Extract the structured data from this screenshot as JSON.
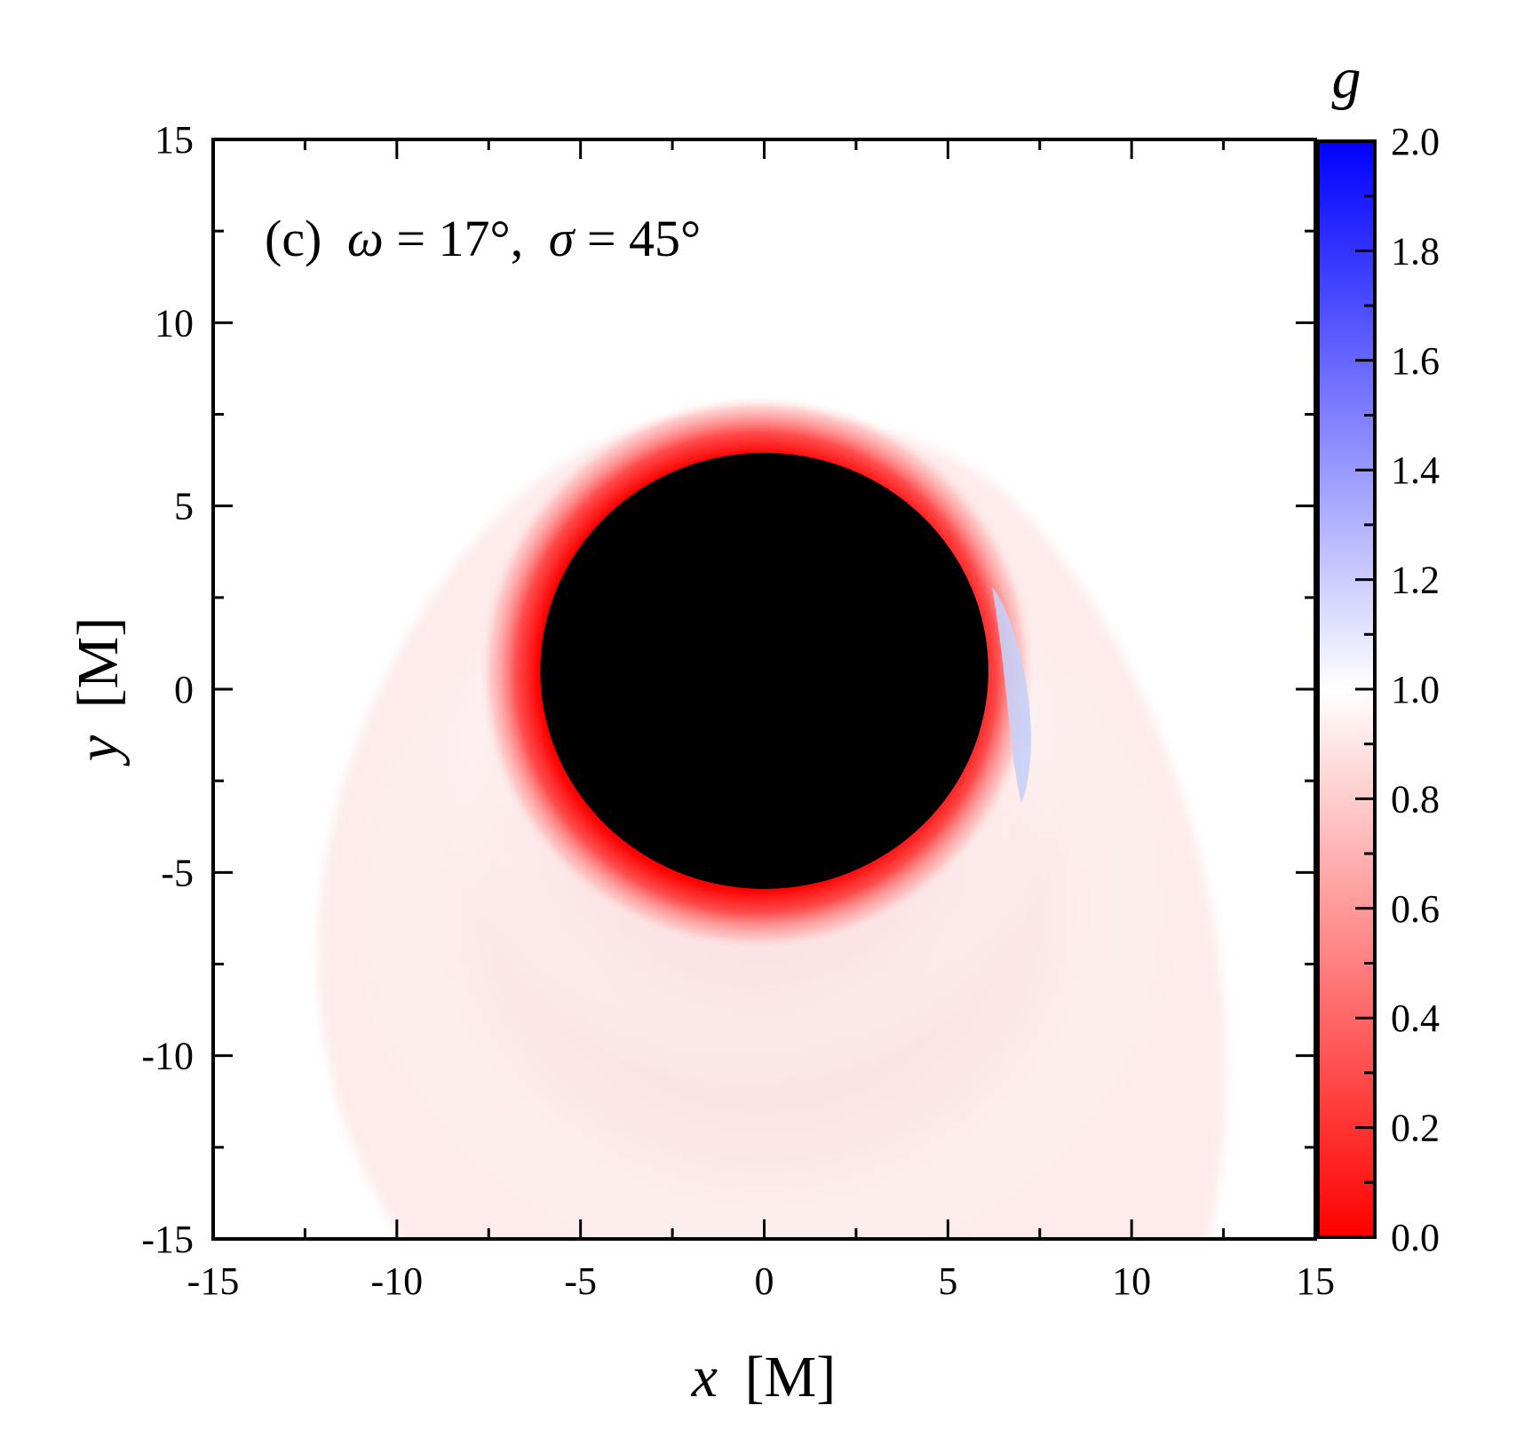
{
  "chart_data": {
    "type": "heatmap",
    "annotation": {
      "panel": "(c)",
      "omega_symbol": "ω",
      "omega_value": "= 17°,",
      "sigma_symbol": "σ",
      "sigma_value": "= 45°"
    },
    "x_axis": {
      "variable": "x",
      "unit": "[M]",
      "range": [
        -15,
        15
      ],
      "ticks": [
        "-15",
        "-10",
        "-5",
        "0",
        "5",
        "10",
        "15"
      ]
    },
    "y_axis": {
      "variable": "y",
      "unit": "[M]",
      "range": [
        -15,
        15
      ],
      "ticks": [
        "-15",
        "-10",
        "-5",
        "0",
        "5",
        "10",
        "15"
      ]
    },
    "colorbar": {
      "title": "g",
      "range": [
        0.0,
        2.0
      ],
      "ticks": [
        "0.0",
        "0.2",
        "0.4",
        "0.6",
        "0.8",
        "1.0",
        "1.2",
        "1.4",
        "1.6",
        "1.8",
        "2.0"
      ],
      "colors": {
        "min": "#ff0000",
        "mid": "#ffffff",
        "max": "#0000ff"
      }
    },
    "shadow": {
      "color": "#000000",
      "center": [
        0.0,
        0.5
      ],
      "radius_x": 6.1,
      "radius_y": 5.95
    },
    "features": {
      "redshift_ring_color": "#ff0000",
      "blueshift_crescent_color": "#c8cff5",
      "halo_color": "#fde4e4"
    },
    "grid": false
  }
}
